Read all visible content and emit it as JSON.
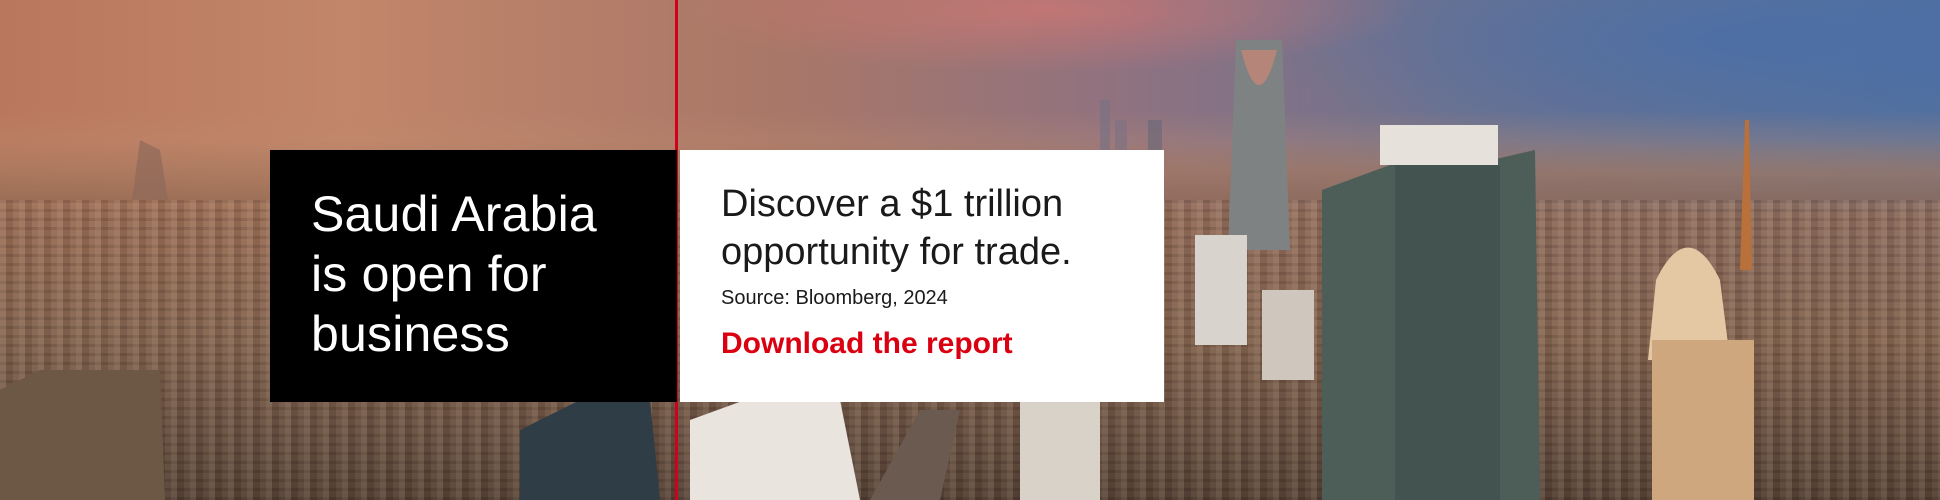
{
  "banner": {
    "headline": "Saudi Arabia is open for business",
    "tagline": "Discover a $1 trillion opportunity for trade.",
    "source": "Source: Bloomberg, 2024",
    "cta_label": "Download the report"
  },
  "colors": {
    "brand_red": "#db0011",
    "divider_red": "#d0011b",
    "headline_panel": "#000000",
    "tagline_panel": "#ffffff"
  }
}
